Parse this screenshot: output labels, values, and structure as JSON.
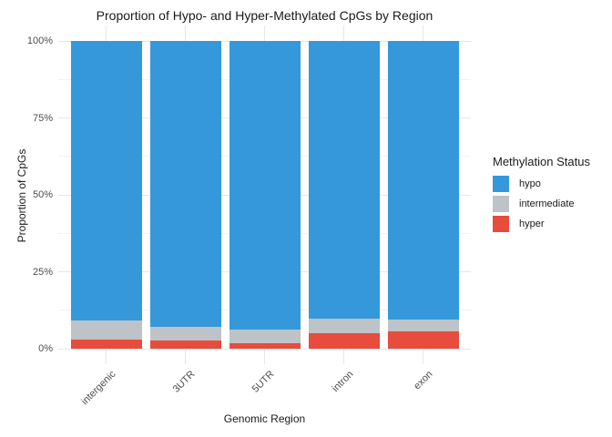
{
  "chart_data": {
    "type": "bar",
    "subtype": "stacked-percent",
    "title": "Proportion of Hypo- and Hyper-Methylated CpGs by Region",
    "xlabel": "Genomic Region",
    "ylabel": "Proportion of CpGs",
    "legend_title": "Methylation Status",
    "legend_position": "right",
    "grid": true,
    "categories": [
      "intergenic",
      "3UTR",
      "5UTR",
      "intron",
      "exon"
    ],
    "series": [
      {
        "name": "hypo",
        "color": "#3498db",
        "values": [
          90.9,
          92.9,
          93.9,
          90.2,
          90.6
        ]
      },
      {
        "name": "intermediate",
        "color": "#bdc3c7",
        "values": [
          6.1,
          4.4,
          4.4,
          4.7,
          3.8
        ]
      },
      {
        "name": "hyper",
        "color": "#e74c3c",
        "values": [
          3.0,
          2.7,
          1.7,
          5.1,
          5.6
        ]
      }
    ],
    "stack_order_bottom_to_top": [
      "hyper",
      "intermediate",
      "hypo"
    ],
    "ylim": [
      0,
      100
    ],
    "y_ticks": [
      {
        "v": 0,
        "label": "0%"
      },
      {
        "v": 25,
        "label": "25%"
      },
      {
        "v": 50,
        "label": "50%"
      },
      {
        "v": 75,
        "label": "75%"
      },
      {
        "v": 100,
        "label": "100%"
      }
    ],
    "y_minor_ticks": [
      12.5,
      37.5,
      62.5,
      87.5
    ],
    "background_color": "#ffffff",
    "major_grid_color": "#e7e7e7",
    "minor_grid_color": "#f2f2f2"
  }
}
